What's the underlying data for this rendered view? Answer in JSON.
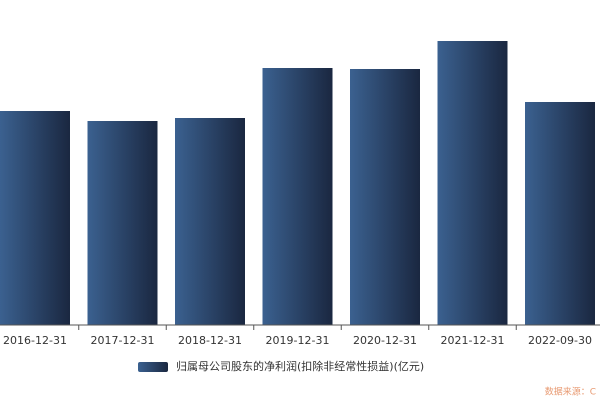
{
  "chart_data": {
    "type": "bar",
    "categories": [
      "2016-12-31",
      "2017-12-31",
      "2018-12-31",
      "2019-12-31",
      "2020-12-31",
      "2021-12-31",
      "2022-09-30"
    ],
    "series": [
      {
        "name": "归属母公司股东的净利润(扣除非经常性损益)(亿元)",
        "color": [
          "#3b6190",
          "#1a2740"
        ],
        "values": [
          214,
          204,
          207,
          257,
          256,
          284,
          223
        ]
      }
    ],
    "ylim": [
      0,
      300
    ],
    "source": "数据来源：C"
  }
}
